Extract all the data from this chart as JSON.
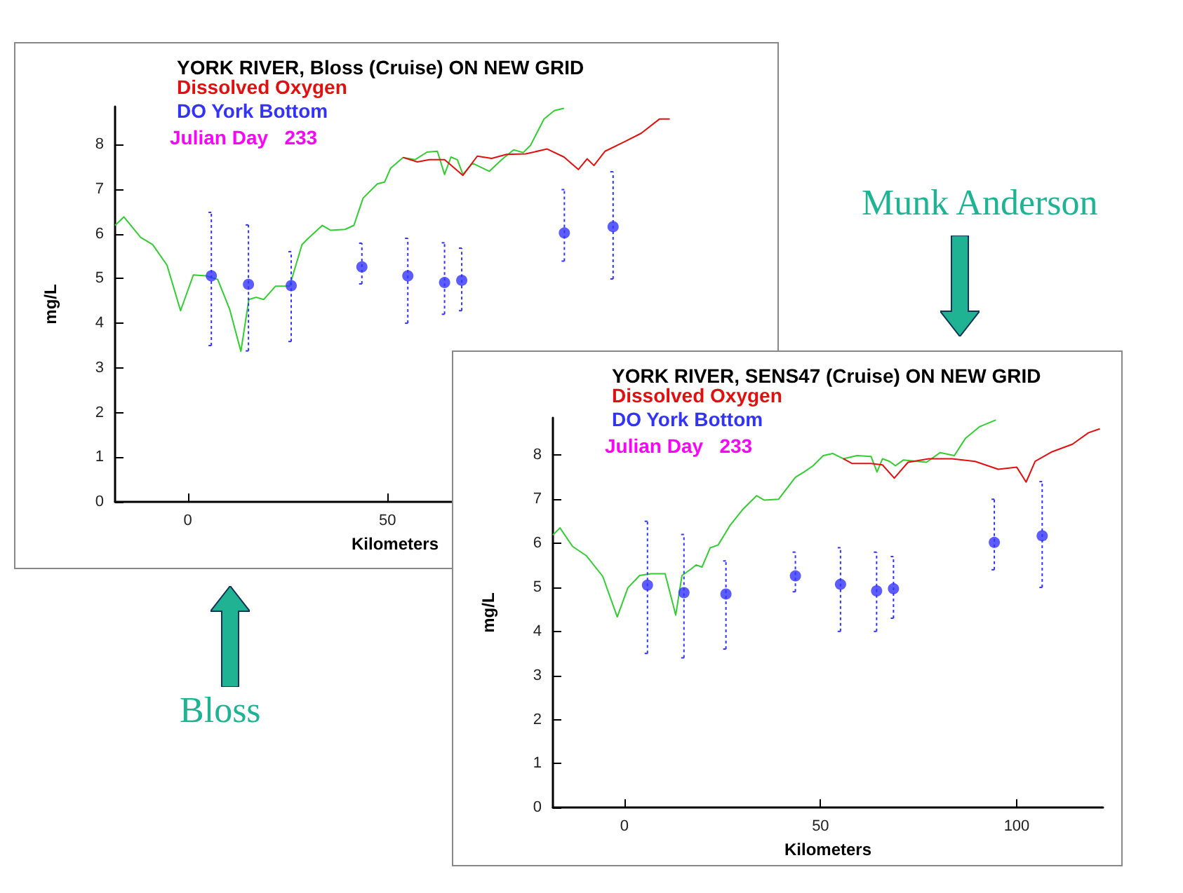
{
  "chart_data": [
    {
      "type": "line",
      "title": "YORK RIVER, Bloss (Cruise) ON NEW GRID",
      "subtitle": "Julian Day   233",
      "xlabel": "Kilometers",
      "ylabel": "mg/L",
      "annotations": [
        "Bloss"
      ],
      "xlim": [
        -18.2,
        122
      ],
      "xticks": [
        0,
        50
      ],
      "ylim": [
        0,
        8.85
      ],
      "yticks": [
        0,
        1,
        2,
        3,
        4,
        5,
        6,
        7,
        8
      ],
      "grid": false,
      "legend": "top left",
      "series": [
        {
          "color": "#33cc33",
          "x": [
            -18.2,
            -16,
            -11.8,
            -8.8,
            -5.2,
            -1.8,
            1.4,
            4.5,
            7.5,
            10.5,
            13.3,
            15.3,
            17.1,
            19,
            22,
            25.5,
            28.6,
            30.4,
            33.7,
            35.8,
            39.4,
            41.6,
            43.9,
            47.5,
            49.3,
            50.8,
            53.9,
            56.9,
            59.9,
            62.5,
            64.3,
            65.9,
            67.5,
            68.9,
            71.3,
            75.5,
            78.6,
            81.6,
            84,
            85.8,
            89.2,
            91.8,
            94.2
          ],
          "values": [
            6.19,
            6.38,
            5.92,
            5.76,
            5.3,
            4.28,
            5.08,
            5.06,
            4.98,
            4.31,
            3.37,
            4.53,
            4.58,
            4.53,
            4.83,
            4.83,
            5.76,
            5.92,
            6.19,
            6.08,
            6.1,
            6.19,
            6.8,
            7.12,
            7.16,
            7.47,
            7.71,
            7.66,
            7.83,
            7.85,
            7.33,
            7.72,
            7.66,
            7.33,
            7.58,
            7.4,
            7.66,
            7.88,
            7.82,
            7.98,
            8.57,
            8.76,
            8.81
          ]
        },
        {
          "name": "Dissolved Oxygen",
          "color": "#e01010",
          "x": [
            53.9,
            57.5,
            60.5,
            64.3,
            68.9,
            72.5,
            76.1,
            79.8,
            84.6,
            90,
            94.2,
            97.8,
            100,
            101.7,
            104.5,
            109.3,
            113.5,
            118.1,
            120.7
          ],
          "values": [
            7.71,
            7.61,
            7.66,
            7.66,
            7.31,
            7.74,
            7.69,
            7.78,
            7.79,
            7.9,
            7.72,
            7.44,
            7.68,
            7.53,
            7.85,
            8.06,
            8.25,
            8.57,
            8.57
          ]
        },
        {
          "name": "DO York Bottom",
          "type": "scatter",
          "marker": "circle",
          "color": "#3333ff",
          "x": [
            5.9,
            15.2,
            25.9,
            43.6,
            55.1,
            64.3,
            68.6,
            94.3,
            106.5
          ],
          "values": [
            5.06,
            4.87,
            4.84,
            5.26,
            5.06,
            4.91,
            4.96,
            6.02,
            6.16
          ],
          "errors": [
            [
              3.5,
              6.48
            ],
            [
              3.38,
              6.2
            ],
            [
              3.59,
              5.6
            ],
            [
              4.88,
              5.79
            ],
            [
              4.0,
              5.9
            ],
            [
              4.2,
              5.8
            ],
            [
              4.28,
              5.68
            ],
            [
              5.39,
              6.99
            ],
            [
              4.99,
              7.39
            ]
          ]
        }
      ]
    },
    {
      "type": "line",
      "title": "YORK RIVER, SENS47 (Cruise) ON NEW GRID",
      "subtitle": "Julian Day   233",
      "xlabel": "Kilometers",
      "ylabel": "mg/L",
      "annotations": [
        "Munk Anderson"
      ],
      "xlim": [
        -18.2,
        122
      ],
      "xticks": [
        0,
        50,
        100
      ],
      "ylim": [
        0,
        8.85
      ],
      "yticks": [
        0,
        1,
        2,
        3,
        4,
        5,
        6,
        7,
        8
      ],
      "grid": false,
      "legend": "top left",
      "series": [
        {
          "color": "#33cc33",
          "x": [
            -18.2,
            -16.4,
            -13.2,
            -9.7,
            -5.5,
            -1.8,
            0.9,
            3.9,
            6.8,
            10.4,
            13.1,
            14.7,
            16.9,
            18.3,
            19.8,
            21.9,
            23.9,
            26.9,
            30.2,
            33.7,
            35.7,
            39.3,
            43.6,
            45.8,
            48.1,
            50.7,
            53.1,
            55.8,
            59.3,
            62.9,
            64.4,
            65.8,
            67.6,
            69.1,
            71.1,
            77,
            80.5,
            84.1,
            87,
            90.6,
            94.7
          ],
          "values": [
            6.19,
            6.35,
            5.93,
            5.72,
            5.25,
            4.33,
            4.99,
            5.27,
            5.31,
            5.31,
            4.37,
            5.27,
            5.41,
            5.51,
            5.46,
            5.9,
            5.96,
            6.4,
            6.77,
            7.08,
            6.98,
            7.0,
            7.5,
            7.62,
            7.76,
            7.99,
            8.04,
            7.92,
            7.99,
            7.97,
            7.62,
            7.92,
            7.86,
            7.76,
            7.89,
            7.84,
            8.06,
            7.99,
            8.39,
            8.65,
            8.8
          ]
        },
        {
          "name": "Dissolved Oxygen",
          "color": "#e01010",
          "x": [
            55.8,
            58.1,
            62.9,
            65.8,
            68.8,
            72.3,
            77.6,
            83.5,
            89.4,
            95.3,
            100,
            102.4,
            104.7,
            108.8,
            114.2,
            118.3,
            121.2
          ],
          "values": [
            7.92,
            7.81,
            7.81,
            7.78,
            7.48,
            7.84,
            7.92,
            7.92,
            7.86,
            7.68,
            7.73,
            7.39,
            7.86,
            8.07,
            8.25,
            8.51,
            8.6
          ]
        },
        {
          "name": "DO York Bottom",
          "type": "scatter",
          "marker": "circle",
          "color": "#3333ff",
          "x": [
            5.9,
            15.2,
            25.9,
            43.6,
            55.1,
            64.3,
            68.6,
            94.3,
            106.5
          ],
          "values": [
            5.05,
            4.88,
            4.85,
            5.26,
            5.07,
            4.92,
            4.97,
            6.02,
            6.17
          ],
          "errors": [
            [
              3.5,
              6.5
            ],
            [
              3.4,
              6.2
            ],
            [
              3.6,
              5.6
            ],
            [
              4.9,
              5.8
            ],
            [
              4.0,
              5.9
            ],
            [
              4.0,
              5.8
            ],
            [
              4.3,
              5.7
            ],
            [
              5.4,
              7.0
            ],
            [
              5.0,
              7.4
            ]
          ]
        }
      ]
    }
  ]
}
